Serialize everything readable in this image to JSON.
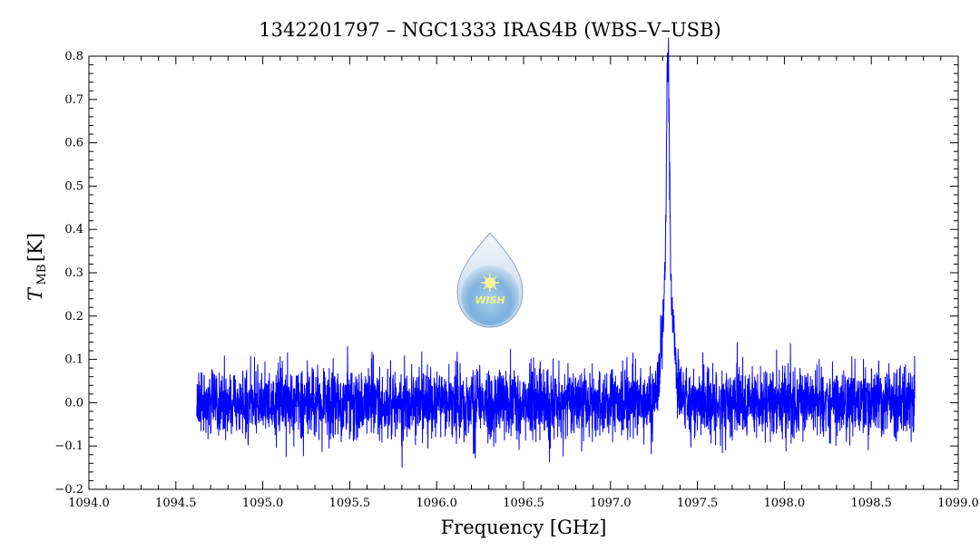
{
  "chart_data": {
    "type": "line",
    "title": "1342201797 – NGC1333 IRAS4B (WBS–V–USB)",
    "xlabel": "Frequency [GHz]",
    "ylabel_main": "T",
    "ylabel_sub": "MB",
    "ylabel_unit": "[K]",
    "xlim": [
      1094.0,
      1099.0
    ],
    "ylim": [
      -0.2,
      0.8
    ],
    "x_ticks": [
      1094.0,
      1094.5,
      1095.0,
      1095.5,
      1096.0,
      1096.5,
      1097.0,
      1097.5,
      1098.0,
      1098.5,
      1099.0
    ],
    "x_tick_labels": [
      "1094.0",
      "1094.5",
      "1095.0",
      "1095.5",
      "1096.0",
      "1096.5",
      "1097.0",
      "1097.5",
      "1098.0",
      "1098.5",
      "1099.0"
    ],
    "y_ticks": [
      -0.2,
      -0.1,
      0.0,
      0.1,
      0.2,
      0.3,
      0.4,
      0.5,
      0.6,
      0.7,
      0.8
    ],
    "y_tick_labels": [
      "−0.2",
      "−0.1",
      "0.0",
      "0.1",
      "0.2",
      "0.3",
      "0.4",
      "0.5",
      "0.6",
      "0.7",
      "0.8"
    ],
    "grid": false,
    "series": [
      {
        "color": "#0000ff",
        "x_range": [
          1094.62,
          1098.75
        ],
        "noise_rms": 0.04,
        "baseline": 0.0,
        "line_peak_x": 1097.33,
        "line_peak_y": 0.74,
        "line_components": [
          {
            "center": 1097.33,
            "amplitude": 0.5,
            "width": 0.008
          },
          {
            "center": 1097.33,
            "amplitude": 0.3,
            "width": 0.03
          }
        ]
      }
    ],
    "annotations": [
      {
        "type": "logo",
        "text": "WISH",
        "icon": "wish-droplet-logo-icon"
      }
    ]
  }
}
